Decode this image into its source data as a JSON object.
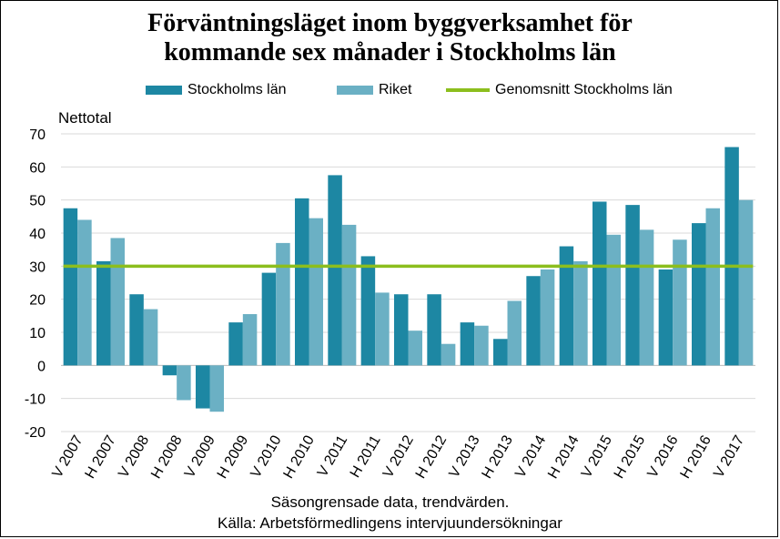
{
  "title_line1": "Förväntningsläget inom byggverksamhet för",
  "title_line2": "kommande sex månader i Stockholms län",
  "legend": {
    "series1": "Stockholms län",
    "series2": "Riket",
    "line": "Genomsnitt Stockholms län"
  },
  "colors": {
    "series1": "#1d87a3",
    "series2": "#6bb0c4",
    "line": "#8cbe1e",
    "grid": "#d9d9d9"
  },
  "note1": "Säsongrensade data, trendvärden.",
  "note2": "Källa: Arbetsförmedlingens  intervjuundersökningar",
  "chart_data": {
    "type": "bar",
    "title": "Förväntningsläget inom byggverksamhet för kommande sex månader i Stockholms län",
    "ylabel": "Nettotal",
    "xlabel": "",
    "ylim": [
      -20,
      70
    ],
    "yticks": [
      -20,
      -10,
      0,
      10,
      20,
      30,
      40,
      50,
      60,
      70
    ],
    "grid": true,
    "legend_position": "top",
    "categories": [
      "V 2007",
      "H 2007",
      "V 2008",
      "H 2008",
      "V 2009",
      "H 2009",
      "V 2010",
      "H 2010",
      "V 2011",
      "H 2011",
      "V 2012",
      "H 2012",
      "V 2013",
      "H 2013",
      "V 2014",
      "H 2014",
      "V 2015",
      "H 2015",
      "V 2016",
      "H 2016",
      "V 2017"
    ],
    "series": [
      {
        "name": "Stockholms län",
        "values": [
          47.5,
          31.5,
          21.5,
          -3,
          -13,
          13,
          28,
          50.5,
          57.5,
          33,
          21.5,
          21.5,
          13,
          8,
          27,
          36,
          49.5,
          48.5,
          29,
          43,
          66
        ]
      },
      {
        "name": "Riket",
        "values": [
          44,
          38.5,
          17,
          -10.5,
          -14,
          15.5,
          37,
          44.5,
          42.5,
          22,
          10.5,
          6.5,
          12,
          19.5,
          29,
          31.5,
          39.5,
          41,
          38,
          47.5,
          50
        ]
      }
    ],
    "reference_line": {
      "name": "Genomsnitt Stockholms län",
      "value": 30
    }
  }
}
